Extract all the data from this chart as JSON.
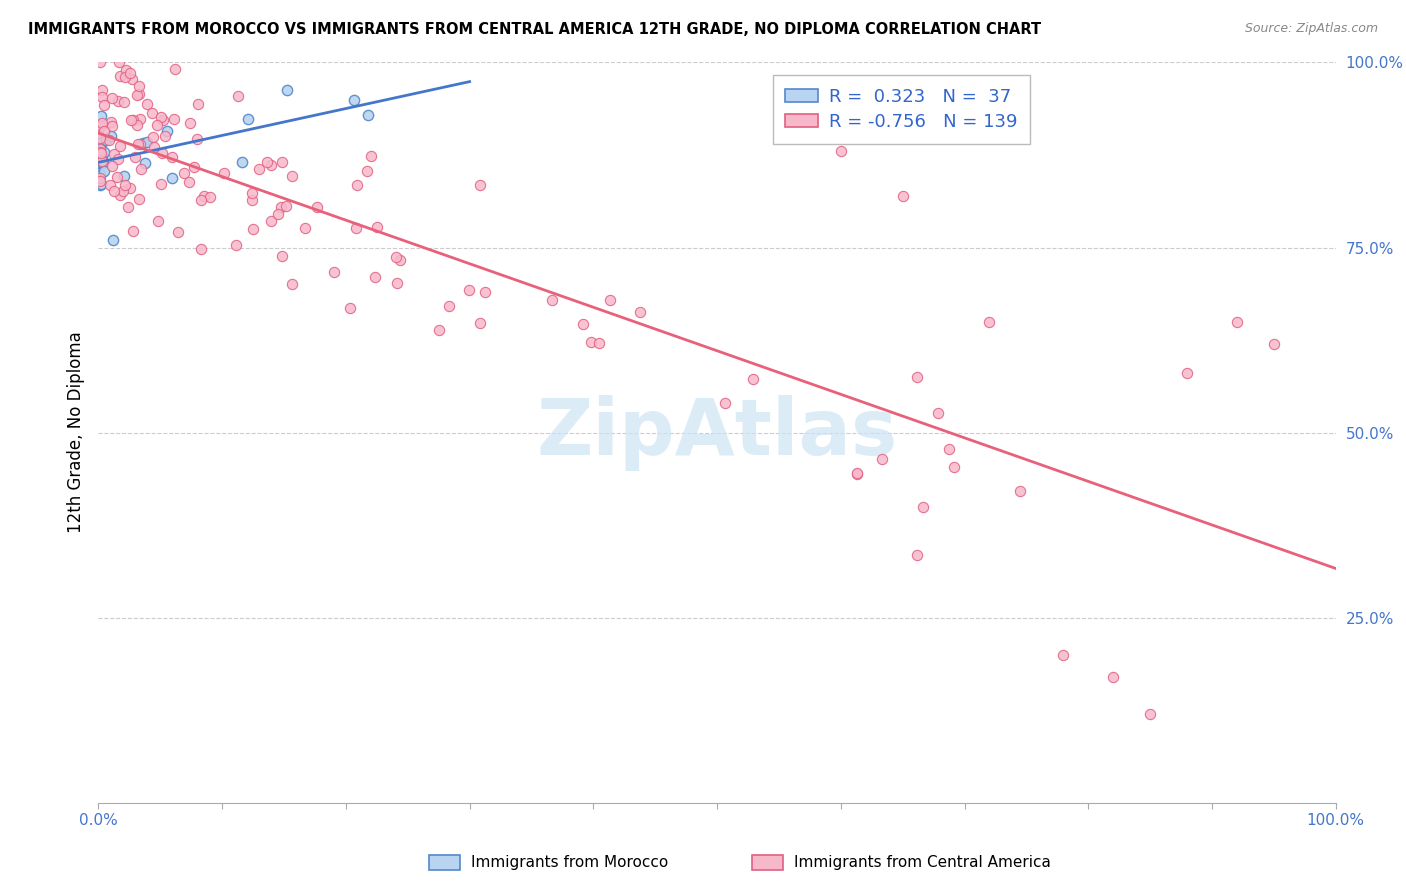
{
  "title": "IMMIGRANTS FROM MOROCCO VS IMMIGRANTS FROM CENTRAL AMERICA 12TH GRADE, NO DIPLOMA CORRELATION CHART",
  "source": "Source: ZipAtlas.com",
  "ylabel": "12th Grade, No Diploma",
  "r_morocco": 0.323,
  "n_morocco": 37,
  "r_central": -0.756,
  "n_central": 139,
  "color_morocco_fill": "#b8d4f0",
  "color_morocco_edge": "#5588cc",
  "color_central_fill": "#f8b8cc",
  "color_central_edge": "#e06080",
  "color_line_morocco": "#4477cc",
  "color_line_central": "#e8607a",
  "watermark_color": "#cce4f5",
  "grid_color": "#cccccc",
  "tick_color": "#4477cc",
  "title_color": "#000000",
  "source_color": "#888888"
}
